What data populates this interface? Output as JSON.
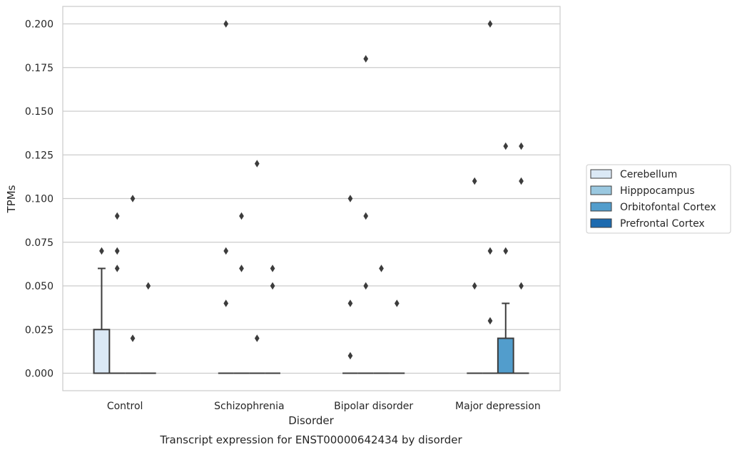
{
  "chart_data": {
    "type": "box",
    "caption": "Transcript expression for ENST00000642434 by disorder",
    "xlabel": "Disorder",
    "ylabel": "TPMs",
    "ylim": [
      -0.01,
      0.21
    ],
    "yticks": [
      "0.000",
      "0.025",
      "0.050",
      "0.075",
      "0.100",
      "0.125",
      "0.150",
      "0.175",
      "0.200"
    ],
    "categories": [
      "Control",
      "Schizophrenia",
      "Bipolar disorder",
      "Major depression"
    ],
    "grid": "horizontal",
    "legend_position": "right",
    "series": [
      {
        "name": "Cerebellum",
        "color": "#dbe9f6",
        "boxes": [
          {
            "q1": 0,
            "median": 0,
            "q3": 0.025,
            "whisker_low": 0,
            "whisker_high": 0.06,
            "outliers": [
              0.07
            ]
          },
          {
            "q1": 0,
            "median": 0,
            "q3": 0,
            "whisker_low": 0,
            "whisker_high": 0,
            "outliers": [
              0.2,
              0.07,
              0.04
            ]
          },
          {
            "q1": 0,
            "median": 0,
            "q3": 0,
            "whisker_low": 0,
            "whisker_high": 0,
            "outliers": [
              0.1,
              0.04,
              0.01
            ]
          },
          {
            "q1": 0,
            "median": 0,
            "q3": 0,
            "whisker_low": 0,
            "whisker_high": 0,
            "outliers": [
              0.11,
              0.05
            ]
          }
        ]
      },
      {
        "name": "Hipppocampus",
        "color": "#9ac8e0",
        "boxes": [
          {
            "q1": 0,
            "median": 0,
            "q3": 0,
            "whisker_low": 0,
            "whisker_high": 0,
            "outliers": [
              0.09,
              0.07,
              0.06
            ]
          },
          {
            "q1": 0,
            "median": 0,
            "q3": 0,
            "whisker_low": 0,
            "whisker_high": 0,
            "outliers": [
              0.09,
              0.06
            ]
          },
          {
            "q1": 0,
            "median": 0,
            "q3": 0,
            "whisker_low": 0,
            "whisker_high": 0,
            "outliers": [
              0.18,
              0.09,
              0.05
            ]
          },
          {
            "q1": 0,
            "median": 0,
            "q3": 0,
            "whisker_low": 0,
            "whisker_high": 0,
            "outliers": [
              0.2,
              0.07,
              0.03
            ]
          }
        ]
      },
      {
        "name": "Orbitofontal Cortex",
        "color": "#529dcc",
        "boxes": [
          {
            "q1": 0,
            "median": 0,
            "q3": 0,
            "whisker_low": 0,
            "whisker_high": 0,
            "outliers": [
              0.1,
              0.02
            ]
          },
          {
            "q1": 0,
            "median": 0,
            "q3": 0,
            "whisker_low": 0,
            "whisker_high": 0,
            "outliers": [
              0.12,
              0.02
            ]
          },
          {
            "q1": 0,
            "median": 0,
            "q3": 0,
            "whisker_low": 0,
            "whisker_high": 0,
            "outliers": [
              0.06
            ]
          },
          {
            "q1": 0,
            "median": 0,
            "q3": 0.02,
            "whisker_low": 0,
            "whisker_high": 0.04,
            "outliers": [
              0.13,
              0.07
            ]
          }
        ]
      },
      {
        "name": "Prefrontal Cortex",
        "color": "#1c6aaf",
        "boxes": [
          {
            "q1": 0,
            "median": 0,
            "q3": 0,
            "whisker_low": 0,
            "whisker_high": 0,
            "outliers": [
              0.05
            ]
          },
          {
            "q1": 0,
            "median": 0,
            "q3": 0,
            "whisker_low": 0,
            "whisker_high": 0,
            "outliers": [
              0.06,
              0.05
            ]
          },
          {
            "q1": 0,
            "median": 0,
            "q3": 0,
            "whisker_low": 0,
            "whisker_high": 0,
            "outliers": [
              0.04
            ]
          },
          {
            "q1": 0,
            "median": 0,
            "q3": 0,
            "whisker_low": 0,
            "whisker_high": 0,
            "outliers": [
              0.13,
              0.11,
              0.05
            ]
          }
        ]
      }
    ]
  }
}
